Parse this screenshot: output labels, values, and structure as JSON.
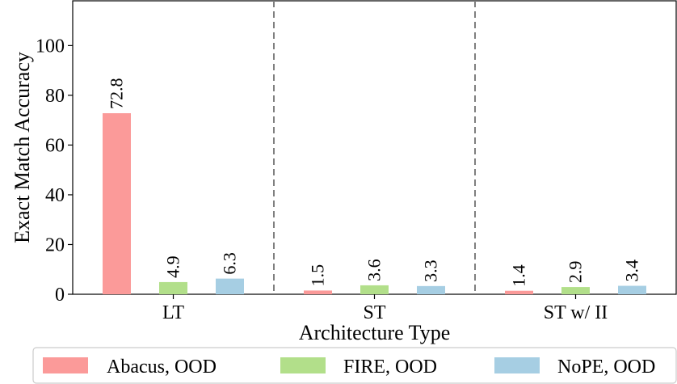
{
  "chart_data": {
    "type": "bar",
    "title": "",
    "xlabel": "Architecture Type",
    "ylabel": "Exact Match Accuracy",
    "categories": [
      "LT",
      "ST",
      "ST w/ II"
    ],
    "ylim": [
      0,
      118
    ],
    "yticks": [
      0,
      20,
      40,
      60,
      80,
      100
    ],
    "series": [
      {
        "name": "Abacus, OOD",
        "color": "#fb9a99",
        "values": [
          72.8,
          1.5,
          1.4
        ],
        "labels": [
          "72.8",
          "1.5",
          "1.4"
        ]
      },
      {
        "name": "FIRE, OOD",
        "color": "#b2df8a",
        "values": [
          4.9,
          3.6,
          2.9
        ],
        "labels": [
          "4.9",
          "3.6",
          "2.9"
        ]
      },
      {
        "name": "NoPE, OOD",
        "color": "#a6cee3",
        "values": [
          6.3,
          3.3,
          3.4
        ],
        "labels": [
          "6.3",
          "3.3",
          "3.4"
        ]
      }
    ],
    "grid": false,
    "separators": "dashed vertical lines between categories",
    "legend_position": "bottom"
  }
}
